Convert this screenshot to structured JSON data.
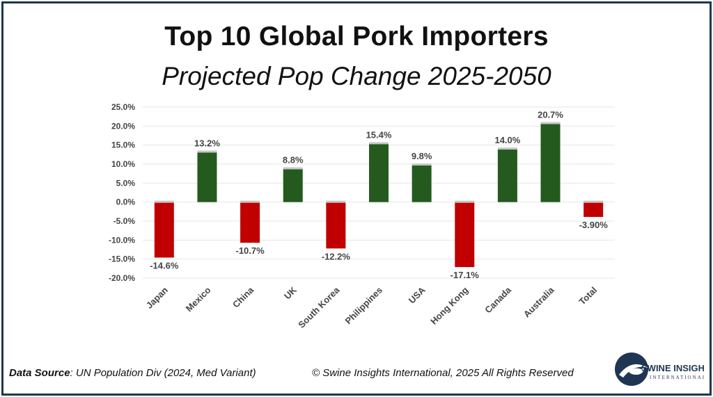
{
  "header": {
    "title": "Top 10 Global Pork Importers",
    "subtitle": "Projected Pop Change 2025-2050"
  },
  "footer": {
    "source_label": "Data Source",
    "source_text": ": UN Population Div (2024, Med Variant)",
    "copyright": "© Swine Insights International, 2025 All Rights Reserved"
  },
  "logo": {
    "name_line1": "SWINE INSIGHTS",
    "name_line2": "INTERNATIONAL",
    "colors": {
      "navy": "#1f3554"
    }
  },
  "chart_data": {
    "type": "bar",
    "title": "Top 10 Global Pork Importers",
    "subtitle": "Projected Pop Change 2025-2050",
    "categories": [
      "Japan",
      "Mexico",
      "China",
      "UK",
      "South Korea",
      "Philippines",
      "USA",
      "Hong Kong",
      "Canada",
      "Australia",
      "Total"
    ],
    "values": [
      -14.6,
      13.2,
      -10.7,
      8.8,
      -12.2,
      15.4,
      9.8,
      -17.1,
      14.0,
      20.7,
      -3.9
    ],
    "data_labels": [
      "-14.6%",
      "13.2%",
      "-10.7%",
      "8.8%",
      "-12.2%",
      "15.4%",
      "9.8%",
      "-17.1%",
      "14.0%",
      "20.7%",
      "-3.90%"
    ],
    "y_ticks": [
      25,
      20,
      15,
      10,
      5,
      0,
      -5,
      -10,
      -15,
      -20
    ],
    "y_tick_labels": [
      "25.0%",
      "20.0%",
      "15.0%",
      "10.0%",
      "5.0%",
      "0.0%",
      "-5.0%",
      "-10.0%",
      "-15.0%",
      "-20.0%"
    ],
    "ylim": [
      -20,
      25
    ],
    "xlabel": "",
    "ylabel": "",
    "grid": true,
    "legend": "none",
    "colors": {
      "positive": "#245a1e",
      "negative": "#c00000",
      "grid": "#e6e6e6",
      "label": "#444444"
    }
  }
}
